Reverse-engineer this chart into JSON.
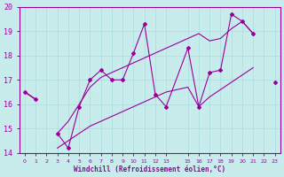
{
  "xlabel": "Windchill (Refroidissement éolien,°C)",
  "bg_color": "#c8ecec",
  "line_color": "#990099",
  "grid_color": "#aadddd",
  "axis_label_color": "#990099",
  "tick_color": "#990099",
  "x_values": [
    0,
    1,
    2,
    3,
    4,
    5,
    6,
    7,
    8,
    9,
    10,
    11,
    12,
    13,
    15,
    16,
    17,
    18,
    19,
    20,
    21,
    22,
    23
  ],
  "y_main": [
    16.5,
    16.2,
    null,
    14.8,
    14.2,
    15.9,
    17.0,
    17.4,
    17.0,
    17.0,
    18.1,
    19.3,
    16.4,
    15.9,
    18.3,
    15.9,
    17.3,
    17.4,
    19.7,
    19.4,
    18.9,
    null,
    16.9
  ],
  "y_upper": [
    16.5,
    16.2,
    null,
    14.8,
    15.3,
    16.0,
    16.7,
    17.1,
    17.3,
    17.5,
    17.7,
    17.9,
    18.1,
    18.3,
    18.7,
    18.9,
    18.6,
    18.7,
    19.1,
    19.4,
    18.9,
    null,
    16.9
  ],
  "y_lower": [
    16.5,
    16.2,
    null,
    14.2,
    14.5,
    14.8,
    15.1,
    15.3,
    15.5,
    15.7,
    15.9,
    16.1,
    16.3,
    16.5,
    16.7,
    15.9,
    16.3,
    16.6,
    16.9,
    17.2,
    17.5,
    null,
    16.9
  ],
  "ylim": [
    14.0,
    20.0
  ],
  "xlim": [
    -0.5,
    23.5
  ],
  "yticks": [
    14,
    15,
    16,
    17,
    18,
    19,
    20
  ],
  "xticks": [
    0,
    1,
    2,
    3,
    4,
    5,
    6,
    7,
    8,
    9,
    10,
    11,
    12,
    13,
    15,
    16,
    17,
    18,
    19,
    20,
    21,
    22,
    23
  ],
  "xtick_labels": [
    "0",
    "1",
    "2",
    "3",
    "4",
    "5",
    "6",
    "7",
    "8",
    "9",
    "10",
    "11",
    "12",
    "13",
    "15",
    "16",
    "17",
    "18",
    "19",
    "20",
    "21",
    "22",
    "23"
  ]
}
